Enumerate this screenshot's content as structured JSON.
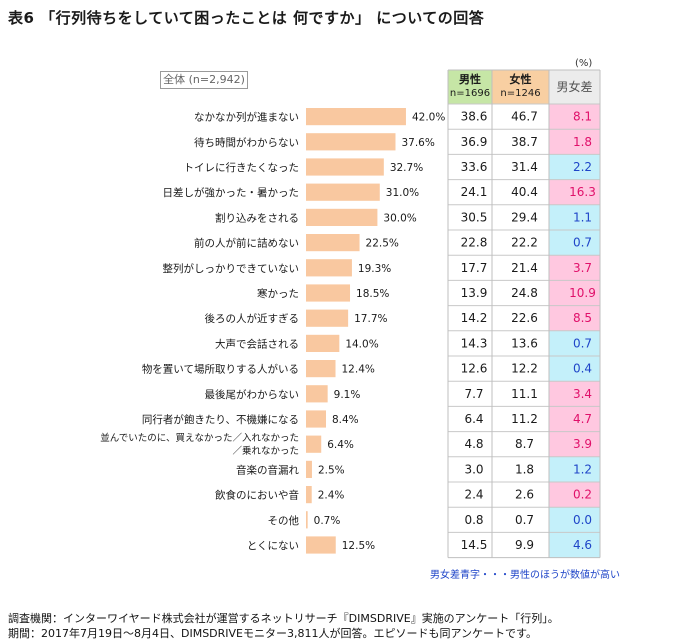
{
  "title": "表6 「行列待ちをしていて困ったことは 何ですか」 についての回答",
  "unit": "(%)",
  "total_label": "全体 (n=2,942)",
  "headers": {
    "male": "男性",
    "male_n": "n=1696",
    "female": "女性",
    "female_n": "n=1246",
    "diff": "男女差"
  },
  "colors": {
    "bar": "#f9c8a0",
    "male_header": "#c6e6a6",
    "female_header": "#f8cfa2",
    "pink": "#ffc8e0",
    "pink_text": "#e0106a",
    "blue": "#c4f0fa",
    "blue_text": "#1f45c8"
  },
  "note": "男女差青字・・・男性のほうが数値が高い",
  "footer": [
    "調査機関：インターワイヤード株式会社が運営するネットリサーチ『DIMSDRIVE』実施のアンケート「行列」。",
    "期間：2017年7月19日～8月4日、DIMSDRIVEモニター3,811人が回答。エピソードも同アンケートです。"
  ],
  "chart_data": {
    "type": "bar",
    "orientation": "horizontal",
    "xlim": [
      0,
      100
    ],
    "categories": [
      "なかなか列が進まない",
      "待ち時間がわからない",
      "トイレに行きたくなった",
      "日差しが強かった・暑かった",
      "割り込みをされる",
      "前の人が前に詰めない",
      "整列がしっかりできていない",
      "寒かった",
      "後ろの人が近すぎる",
      "大声で会話される",
      "物を置いて場所取りする人がいる",
      "最後尾がわからない",
      "同行者が飽きたり、不機嫌になる",
      "並んでいたのに、買えなかった／入れなかった／乗れなかった",
      "音楽の音漏れ",
      "飲食のにおいや音",
      "その他",
      "とくにない"
    ],
    "label_lines": [
      [
        "なかなか列が進まない"
      ],
      [
        "待ち時間がわからない"
      ],
      [
        "トイレに行きたくなった"
      ],
      [
        "日差しが強かった・暑かった"
      ],
      [
        "割り込みをされる"
      ],
      [
        "前の人が前に詰めない"
      ],
      [
        "整列がしっかりできていない"
      ],
      [
        "寒かった"
      ],
      [
        "後ろの人が近すぎる"
      ],
      [
        "大声で会話される"
      ],
      [
        "物を置いて場所取りする人がいる"
      ],
      [
        "最後尾がわからない"
      ],
      [
        "同行者が飽きたり、不機嫌になる"
      ],
      [
        "並んでいたのに、買えなかった／入れなかった",
        "／乗れなかった"
      ],
      [
        "音楽の音漏れ"
      ],
      [
        "飲食のにおいや音"
      ],
      [
        "その他"
      ],
      [
        "とくにない"
      ]
    ],
    "values": [
      42.0,
      37.6,
      32.7,
      31.0,
      30.0,
      22.5,
      19.3,
      18.5,
      17.7,
      14.0,
      12.4,
      9.1,
      8.4,
      6.4,
      2.5,
      2.4,
      0.7,
      12.5
    ],
    "value_labels": [
      "42.0%",
      "37.6%",
      "32.7%",
      "31.0%",
      "30.0%",
      "22.5%",
      "19.3%",
      "18.5%",
      "17.7%",
      "14.0%",
      "12.4%",
      "9.1%",
      "8.4%",
      "6.4%",
      "2.5%",
      "2.4%",
      "0.7%",
      "12.5%"
    ],
    "male": [
      "38.6",
      "36.9",
      "33.6",
      "24.1",
      "30.5",
      "22.8",
      "17.7",
      "13.9",
      "14.2",
      "14.3",
      "12.6",
      "7.7",
      "6.4",
      "4.8",
      "3.0",
      "2.4",
      "0.8",
      "14.5"
    ],
    "female": [
      "46.7",
      "38.7",
      "31.4",
      "40.4",
      "29.4",
      "22.2",
      "21.4",
      "24.8",
      "22.6",
      "13.6",
      "12.2",
      "11.1",
      "11.2",
      "8.7",
      "1.8",
      "2.6",
      "0.7",
      "9.9"
    ],
    "diff": [
      "8.1",
      "1.8",
      "2.2",
      "16.3",
      "1.1",
      "0.7",
      "3.7",
      "10.9",
      "8.5",
      "0.7",
      "0.4",
      "3.4",
      "4.7",
      "3.9",
      "1.2",
      "0.2",
      "0.0",
      "4.6"
    ],
    "diff_higher": [
      "female",
      "female",
      "male",
      "female",
      "male",
      "male",
      "female",
      "female",
      "female",
      "male",
      "male",
      "female",
      "female",
      "female",
      "male",
      "female",
      "male",
      "male"
    ]
  }
}
